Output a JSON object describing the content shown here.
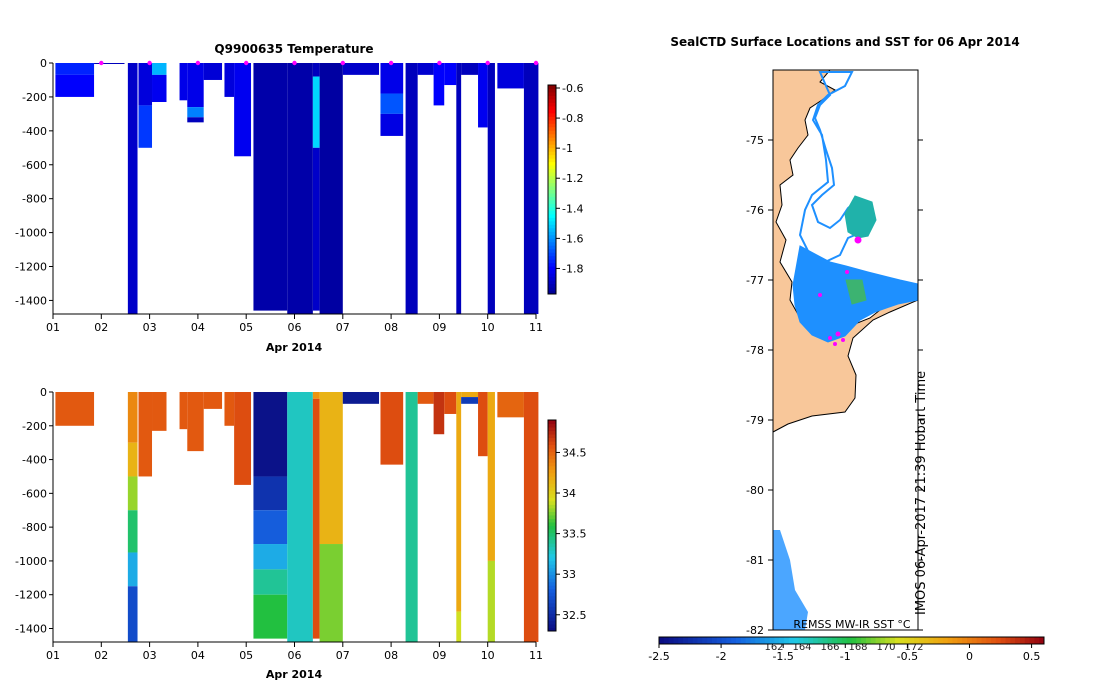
{
  "chart_data": [
    {
      "type": "heatmap",
      "title": "Q9900635  Temperature",
      "xlabel": "Apr 2014",
      "x_ticks": [
        "01",
        "02",
        "03",
        "04",
        "05",
        "06",
        "07",
        "08",
        "09",
        "10",
        "11"
      ],
      "xlim": [
        1,
        11
      ],
      "ylim": [
        -1480,
        0
      ],
      "y_ticks": [
        0,
        -200,
        -400,
        -600,
        -800,
        -1000,
        -1200,
        -1400
      ],
      "colorbar": {
        "min": -1.97,
        "max": -0.58,
        "ticks": [
          -0.6,
          -0.8,
          -1,
          -1.2,
          -1.4,
          -1.6,
          -1.8
        ]
      },
      "profiles": [
        {
          "x0": 1.05,
          "x1": 1.85,
          "depth": 200,
          "segments": [
            {
              "d0": 0,
              "d1": 70,
              "v": -1.75
            },
            {
              "d0": 70,
              "d1": 200,
              "v": -1.8
            }
          ]
        },
        {
          "x0": 1.85,
          "x1": 2.48,
          "depth": 3,
          "segments": [
            {
              "d0": 0,
              "d1": 3,
              "v": -1.9
            }
          ]
        },
        {
          "x0": 2.55,
          "x1": 2.75,
          "depth": 1480,
          "segments": [
            {
              "d0": 0,
              "d1": 1480,
              "v": -1.88
            }
          ]
        },
        {
          "x0": 2.77,
          "x1": 3.05,
          "depth": 500,
          "segments": [
            {
              "d0": 0,
              "d1": 250,
              "v": -1.85
            },
            {
              "d0": 250,
              "d1": 500,
              "v": -1.72
            }
          ]
        },
        {
          "x0": 3.05,
          "x1": 3.35,
          "depth": 230,
          "segments": [
            {
              "d0": 0,
              "d1": 70,
              "v": -1.55
            },
            {
              "d0": 70,
              "d1": 230,
              "v": -1.82
            }
          ]
        },
        {
          "x0": 3.62,
          "x1": 3.78,
          "depth": 220,
          "segments": [
            {
              "d0": 0,
              "d1": 220,
              "v": -1.83
            }
          ]
        },
        {
          "x0": 3.78,
          "x1": 4.12,
          "depth": 350,
          "segments": [
            {
              "d0": 0,
              "d1": 260,
              "v": -1.83
            },
            {
              "d0": 260,
              "d1": 320,
              "v": -1.62
            },
            {
              "d0": 320,
              "d1": 350,
              "v": -1.9
            }
          ]
        },
        {
          "x0": 4.12,
          "x1": 4.5,
          "depth": 100,
          "segments": [
            {
              "d0": 0,
              "d1": 100,
              "v": -1.86
            }
          ]
        },
        {
          "x0": 4.55,
          "x1": 4.75,
          "depth": 200,
          "segments": [
            {
              "d0": 0,
              "d1": 200,
              "v": -1.85
            }
          ]
        },
        {
          "x0": 4.75,
          "x1": 5.1,
          "depth": 550,
          "segments": [
            {
              "d0": 0,
              "d1": 550,
              "v": -1.82
            }
          ]
        },
        {
          "x0": 5.15,
          "x1": 5.85,
          "depth": 1460,
          "segments": [
            {
              "d0": 0,
              "d1": 1460,
              "v": -1.93
            }
          ]
        },
        {
          "x0": 5.85,
          "x1": 6.38,
          "depth": 1480,
          "segments": [
            {
              "d0": 0,
              "d1": 1480,
              "v": -1.93
            }
          ]
        },
        {
          "x0": 6.38,
          "x1": 6.52,
          "depth": 1460,
          "segments": [
            {
              "d0": 0,
              "d1": 80,
              "v": -1.9
            },
            {
              "d0": 80,
              "d1": 500,
              "v": -1.5
            },
            {
              "d0": 500,
              "d1": 1460,
              "v": -1.88
            }
          ]
        },
        {
          "x0": 6.52,
          "x1": 7.0,
          "depth": 1480,
          "segments": [
            {
              "d0": 0,
              "d1": 1480,
              "v": -1.94
            }
          ]
        },
        {
          "x0": 7.0,
          "x1": 7.75,
          "depth": 70,
          "segments": [
            {
              "d0": 0,
              "d1": 70,
              "v": -1.88
            }
          ]
        },
        {
          "x0": 7.78,
          "x1": 8.25,
          "depth": 430,
          "segments": [
            {
              "d0": 0,
              "d1": 180,
              "v": -1.83
            },
            {
              "d0": 180,
              "d1": 300,
              "v": -1.68
            },
            {
              "d0": 300,
              "d1": 430,
              "v": -1.84
            }
          ]
        },
        {
          "x0": 8.3,
          "x1": 8.55,
          "depth": 1480,
          "segments": [
            {
              "d0": 0,
              "d1": 1480,
              "v": -1.9
            }
          ]
        },
        {
          "x0": 8.55,
          "x1": 8.88,
          "depth": 70,
          "segments": [
            {
              "d0": 0,
              "d1": 70,
              "v": -1.87
            }
          ]
        },
        {
          "x0": 8.88,
          "x1": 9.1,
          "depth": 250,
          "segments": [
            {
              "d0": 0,
              "d1": 250,
              "v": -1.8
            }
          ]
        },
        {
          "x0": 9.1,
          "x1": 9.35,
          "depth": 130,
          "segments": [
            {
              "d0": 0,
              "d1": 130,
              "v": -1.8
            }
          ]
        },
        {
          "x0": 9.35,
          "x1": 9.45,
          "depth": 1480,
          "segments": [
            {
              "d0": 0,
              "d1": 1480,
              "v": -1.9
            }
          ]
        },
        {
          "x0": 9.45,
          "x1": 9.8,
          "depth": 70,
          "segments": [
            {
              "d0": 0,
              "d1": 70,
              "v": -1.9
            }
          ]
        },
        {
          "x0": 9.8,
          "x1": 10.0,
          "depth": 380,
          "segments": [
            {
              "d0": 0,
              "d1": 380,
              "v": -1.82
            }
          ]
        },
        {
          "x0": 10.0,
          "x1": 10.15,
          "depth": 1480,
          "segments": [
            {
              "d0": 0,
              "d1": 1480,
              "v": -1.9
            }
          ]
        },
        {
          "x0": 10.2,
          "x1": 10.75,
          "depth": 150,
          "segments": [
            {
              "d0": 0,
              "d1": 150,
              "v": -1.85
            }
          ]
        },
        {
          "x0": 10.75,
          "x1": 11.05,
          "depth": 1480,
          "segments": [
            {
              "d0": 0,
              "d1": 1480,
              "v": -1.9
            }
          ]
        }
      ],
      "markers_x": [
        2,
        3,
        4,
        5,
        6,
        7,
        8,
        9,
        10,
        11
      ]
    },
    {
      "type": "heatmap",
      "title": "",
      "xlabel": "Apr 2014",
      "x_ticks": [
        "01",
        "02",
        "03",
        "04",
        "05",
        "06",
        "07",
        "08",
        "09",
        "10",
        "11"
      ],
      "xlim": [
        1,
        11
      ],
      "ylim": [
        -1480,
        0
      ],
      "y_ticks": [
        0,
        -200,
        -400,
        -600,
        -800,
        -1000,
        -1200,
        -1400
      ],
      "colorbar": {
        "min": 32.3,
        "max": 34.9,
        "ticks": [
          34.5,
          34,
          33.5,
          33,
          32.5
        ]
      },
      "profiles": [
        {
          "x0": 1.05,
          "x1": 1.85,
          "depth": 200,
          "segments": [
            {
              "d0": 0,
              "d1": 200,
              "v": 34.55
            }
          ]
        },
        {
          "x0": 2.55,
          "x1": 2.75,
          "depth": 1480,
          "segments": [
            {
              "d0": 0,
              "d1": 300,
              "v": 34.35
            },
            {
              "d0": 300,
              "d1": 500,
              "v": 34.15
            },
            {
              "d0": 500,
              "d1": 700,
              "v": 33.8
            },
            {
              "d0": 700,
              "d1": 950,
              "v": 33.5
            },
            {
              "d0": 950,
              "d1": 1150,
              "v": 33.1
            },
            {
              "d0": 1150,
              "d1": 1480,
              "v": 32.7
            }
          ]
        },
        {
          "x0": 2.77,
          "x1": 3.05,
          "depth": 500,
          "segments": [
            {
              "d0": 0,
              "d1": 500,
              "v": 34.55
            }
          ]
        },
        {
          "x0": 3.05,
          "x1": 3.35,
          "depth": 230,
          "segments": [
            {
              "d0": 0,
              "d1": 230,
              "v": 34.55
            }
          ]
        },
        {
          "x0": 3.62,
          "x1": 3.78,
          "depth": 220,
          "segments": [
            {
              "d0": 0,
              "d1": 220,
              "v": 34.55
            }
          ]
        },
        {
          "x0": 3.78,
          "x1": 4.12,
          "depth": 350,
          "segments": [
            {
              "d0": 0,
              "d1": 350,
              "v": 34.55
            }
          ]
        },
        {
          "x0": 4.12,
          "x1": 4.5,
          "depth": 100,
          "segments": [
            {
              "d0": 0,
              "d1": 100,
              "v": 34.55
            }
          ]
        },
        {
          "x0": 4.55,
          "x1": 4.75,
          "depth": 200,
          "segments": [
            {
              "d0": 0,
              "d1": 200,
              "v": 34.55
            }
          ]
        },
        {
          "x0": 4.75,
          "x1": 5.1,
          "depth": 550,
          "segments": [
            {
              "d0": 0,
              "d1": 550,
              "v": 34.6
            }
          ]
        },
        {
          "x0": 5.15,
          "x1": 5.85,
          "depth": 1460,
          "segments": [
            {
              "d0": 0,
              "d1": 500,
              "v": 32.35
            },
            {
              "d0": 500,
              "d1": 700,
              "v": 32.55
            },
            {
              "d0": 700,
              "d1": 900,
              "v": 32.8
            },
            {
              "d0": 900,
              "d1": 1050,
              "v": 33.1
            },
            {
              "d0": 1050,
              "d1": 1200,
              "v": 33.4
            },
            {
              "d0": 1200,
              "d1": 1460,
              "v": 33.6
            }
          ]
        },
        {
          "x0": 5.85,
          "x1": 6.38,
          "depth": 1480,
          "segments": [
            {
              "d0": 0,
              "d1": 1480,
              "v": 33.3
            }
          ]
        },
        {
          "x0": 6.38,
          "x1": 6.52,
          "depth": 1460,
          "segments": [
            {
              "d0": 0,
              "d1": 40,
              "v": 34.3
            },
            {
              "d0": 40,
              "d1": 1460,
              "v": 34.6
            }
          ]
        },
        {
          "x0": 6.52,
          "x1": 7.0,
          "depth": 1480,
          "segments": [
            {
              "d0": 0,
              "d1": 900,
              "v": 34.15
            },
            {
              "d0": 900,
              "d1": 1480,
              "v": 33.75
            }
          ]
        },
        {
          "x0": 7.0,
          "x1": 7.75,
          "depth": 70,
          "segments": [
            {
              "d0": 0,
              "d1": 70,
              "v": 32.4
            }
          ]
        },
        {
          "x0": 7.78,
          "x1": 8.25,
          "depth": 430,
          "segments": [
            {
              "d0": 0,
              "d1": 430,
              "v": 34.6
            }
          ]
        },
        {
          "x0": 8.3,
          "x1": 8.55,
          "depth": 1480,
          "segments": [
            {
              "d0": 0,
              "d1": 1480,
              "v": 33.4
            }
          ]
        },
        {
          "x0": 8.55,
          "x1": 8.88,
          "depth": 70,
          "segments": [
            {
              "d0": 0,
              "d1": 70,
              "v": 34.55
            }
          ]
        },
        {
          "x0": 8.88,
          "x1": 9.1,
          "depth": 250,
          "segments": [
            {
              "d0": 0,
              "d1": 250,
              "v": 34.7
            }
          ]
        },
        {
          "x0": 9.1,
          "x1": 9.35,
          "depth": 130,
          "segments": [
            {
              "d0": 0,
              "d1": 130,
              "v": 34.6
            }
          ]
        },
        {
          "x0": 9.35,
          "x1": 9.45,
          "depth": 1480,
          "segments": [
            {
              "d0": 0,
              "d1": 1300,
              "v": 34.2
            },
            {
              "d0": 1300,
              "d1": 1480,
              "v": 33.9
            }
          ]
        },
        {
          "x0": 9.45,
          "x1": 9.8,
          "depth": 70,
          "segments": [
            {
              "d0": 0,
              "d1": 30,
              "v": 34.2
            },
            {
              "d0": 30,
              "d1": 70,
              "v": 32.6
            }
          ]
        },
        {
          "x0": 9.8,
          "x1": 10.0,
          "depth": 380,
          "segments": [
            {
              "d0": 0,
              "d1": 380,
              "v": 34.6
            }
          ]
        },
        {
          "x0": 10.0,
          "x1": 10.15,
          "depth": 1480,
          "segments": [
            {
              "d0": 0,
              "d1": 1000,
              "v": 34.2
            },
            {
              "d0": 1000,
              "d1": 1480,
              "v": 33.85
            }
          ]
        },
        {
          "x0": 10.2,
          "x1": 10.75,
          "depth": 150,
          "segments": [
            {
              "d0": 0,
              "d1": 150,
              "v": 34.5
            }
          ]
        },
        {
          "x0": 10.75,
          "x1": 11.05,
          "depth": 1480,
          "segments": [
            {
              "d0": 0,
              "d1": 1480,
              "v": 34.6
            }
          ]
        }
      ]
    },
    {
      "type": "heatmap",
      "title": "SealCTD Surface Locations and SST for 06 Apr 2014",
      "ylim": [
        -82,
        -74
      ],
      "y_ticks": [
        -75,
        -76,
        -77,
        -78,
        -79,
        -80,
        -81,
        -82
      ],
      "colorbar": {
        "min": -2.5,
        "max": 0.6,
        "ticks": [
          -2.5,
          -2,
          -1.5,
          -1,
          -0.5,
          0,
          0.5
        ]
      },
      "colorbar_label": "REMSS MW-IR SST °C",
      "overlay_ticks": [
        "162",
        "164",
        "166",
        "168",
        "170",
        "172"
      ],
      "annotation": "IMOS 06-Apr-2017 21:39 Hobart Time"
    }
  ]
}
